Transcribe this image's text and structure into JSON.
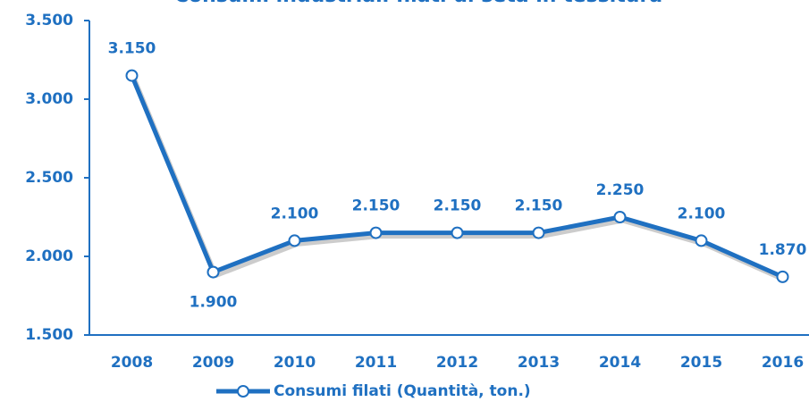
{
  "chart_data": {
    "type": "line",
    "title": "Consumi industriali filati di seta in tessitura",
    "categories": [
      "2008",
      "2009",
      "2010",
      "2011",
      "2012",
      "2013",
      "2014",
      "2015",
      "2016"
    ],
    "series": [
      {
        "name": "Consumi filati (Quantità, ton.)",
        "color": "#1f70c1",
        "values": [
          3150,
          1900,
          2100,
          2150,
          2150,
          2150,
          2250,
          2100,
          1870
        ],
        "value_labels": [
          "3.150",
          "1.900",
          "2.100",
          "2.150",
          "2.150",
          "2.150",
          "2.250",
          "2.100",
          "1.870"
        ]
      }
    ],
    "ylim": [
      1500,
      3500
    ],
    "yticks": [
      {
        "value": 1500,
        "label": "1.500"
      },
      {
        "value": 2000,
        "label": "2.000"
      },
      {
        "value": 2500,
        "label": "2.500"
      },
      {
        "value": 3000,
        "label": "3.000"
      },
      {
        "value": 3500,
        "label": "3.500"
      }
    ],
    "grid": false,
    "legend": "bottom"
  }
}
